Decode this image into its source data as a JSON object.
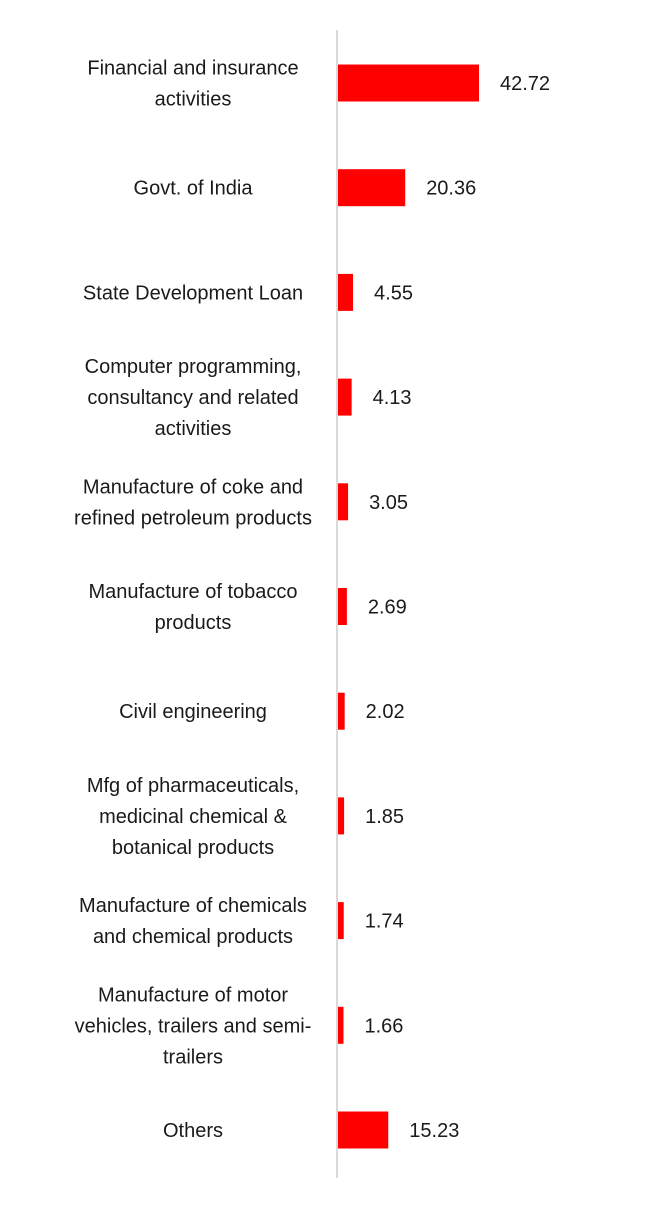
{
  "chart_data": {
    "type": "bar",
    "orientation": "horizontal",
    "categories": [
      "Financial and insurance activities",
      "Govt. of India",
      "State Development Loan",
      "Computer programming, consultancy and related activities",
      "Manufacture of coke and refined petroleum products",
      "Manufacture of tobacco products",
      "Civil engineering",
      "Mfg of pharmaceuticals, medicinal chemical & botanical products",
      "Manufacture of chemicals and chemical products",
      "Manufacture of motor vehicles, trailers and semi-trailers",
      "Others"
    ],
    "category_lines": [
      [
        "Financial and insurance",
        "activities"
      ],
      [
        "Govt. of India"
      ],
      [
        "State Development Loan"
      ],
      [
        "Computer programming,",
        "consultancy and related",
        "activities"
      ],
      [
        "Manufacture of coke and",
        "refined petroleum products"
      ],
      [
        "Manufacture of tobacco",
        "products"
      ],
      [
        "Civil engineering"
      ],
      [
        "Mfg of pharmaceuticals,",
        "medicinal chemical &",
        "botanical products"
      ],
      [
        "Manufacture of chemicals",
        "and chemical products"
      ],
      [
        "Manufacture of motor",
        "vehicles, trailers and semi-",
        "trailers"
      ],
      [
        "Others"
      ]
    ],
    "values": [
      42.72,
      20.36,
      4.55,
      4.13,
      3.05,
      2.69,
      2.02,
      1.85,
      1.74,
      1.66,
      15.23
    ],
    "value_labels": [
      "42.72",
      "20.36",
      "4.55",
      "4.13",
      "3.05",
      "2.69",
      "2.02",
      "1.85",
      "1.74",
      "1.66",
      "15.23"
    ],
    "bar_color": "#ff0000",
    "axis_color": "#d9d9d9",
    "title": "",
    "xlabel": "",
    "ylabel": "",
    "grid": false,
    "legend": "none"
  }
}
